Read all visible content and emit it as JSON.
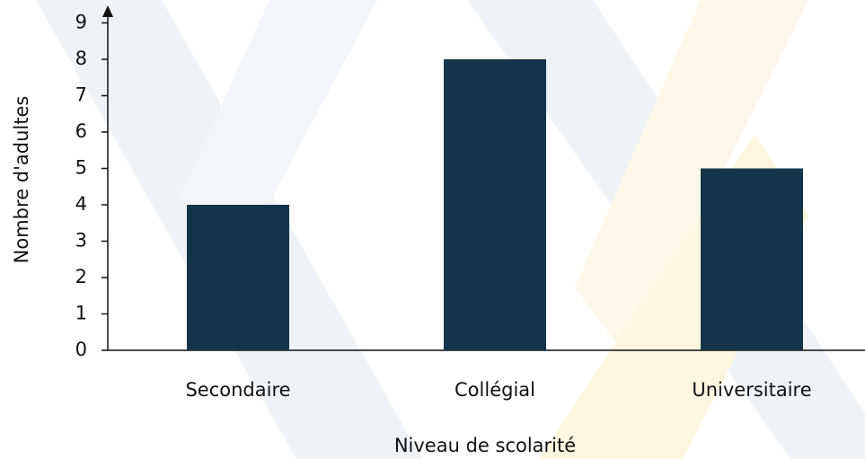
{
  "chart_data": {
    "type": "bar",
    "categories": [
      "Secondaire",
      "Collégial",
      "Universitaire"
    ],
    "values": [
      4,
      8,
      5
    ],
    "color": "#143549",
    "xlabel": "Niveau de scolarité",
    "ylabel": "Nombre d'adultes",
    "ylim": [
      0,
      9
    ],
    "yticks": [
      0,
      1,
      2,
      3,
      4,
      5,
      6,
      7,
      8,
      9
    ],
    "grid": false
  }
}
